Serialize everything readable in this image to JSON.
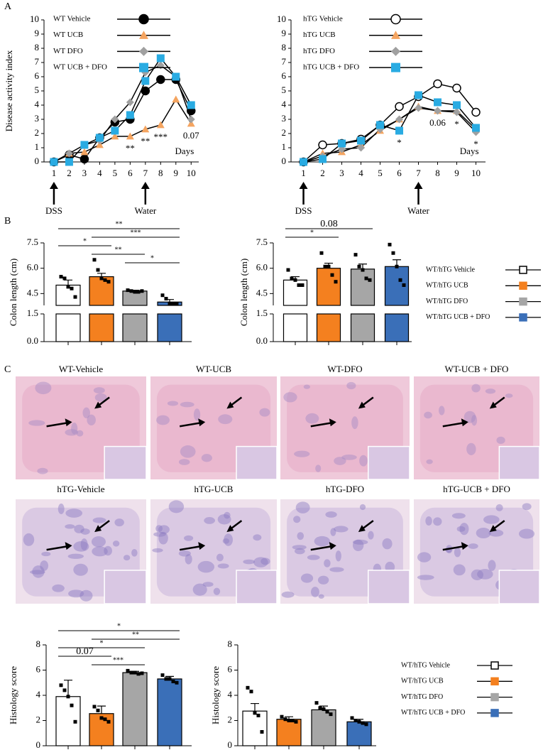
{
  "panel_labels": [
    "A",
    "B",
    "C"
  ],
  "micrographs": [
    "WT-Vehicle",
    "WT-UCB",
    "WT-DFO",
    "WT-UCB + DFO",
    "hTG-Vehicle",
    "hTG-UCB",
    "hTG-DFO",
    "hTG-UCB + DFO"
  ],
  "legend": {
    "entries": [
      "WT/hTG Vehicle",
      "WT/hTG UCB",
      "WT/hTG DFO",
      "WT/hTG UCB + DFO"
    ],
    "colors": [
      "#ffffff",
      "#f4801f",
      "#a6a6a6",
      "#3a6fb8"
    ]
  },
  "chart_data": [
    {
      "type": "line",
      "ylabel": "Disease activity index",
      "xlabel": "Days",
      "x": [
        1,
        2,
        3,
        4,
        5,
        6,
        7,
        8,
        9,
        10
      ],
      "xlim": [
        0.35,
        10.5
      ],
      "xticks": [
        1,
        2,
        3,
        4,
        5,
        6,
        7,
        8,
        9,
        10
      ],
      "ylim": [
        0,
        10
      ],
      "yticks": [
        0,
        1,
        2,
        3,
        4,
        5,
        6,
        7,
        8,
        9,
        10
      ],
      "series": [
        {
          "name": "WT Vehicle",
          "color": "#000000",
          "marker": "circle-filled",
          "values": [
            0,
            0.5,
            0.2,
            1.7,
            2.8,
            3.0,
            5.0,
            5.8,
            5.8,
            3.6
          ]
        },
        {
          "name": "WT UCB",
          "color": "#f4a460",
          "marker": "triangle",
          "values": [
            0,
            0.6,
            0.7,
            1.2,
            1.8,
            1.8,
            2.3,
            2.6,
            4.4,
            2.7
          ]
        },
        {
          "name": "WT DFO",
          "color": "#a0a0a0",
          "marker": "diamond",
          "values": [
            0,
            0.6,
            1.2,
            1.5,
            3.0,
            4.2,
            6.3,
            6.8,
            6.0,
            3.0
          ]
        },
        {
          "name": "WT UCB + DFO",
          "color": "#29abe2",
          "marker": "square",
          "values": [
            0,
            0,
            1.2,
            1.7,
            2.2,
            3.3,
            5.7,
            7.3,
            6.0,
            4.0
          ]
        }
      ],
      "annotations": [
        {
          "x": 6,
          "text": "**"
        },
        {
          "x": 7,
          "text": "**"
        },
        {
          "x": 8,
          "text": "***"
        },
        {
          "x": 10,
          "text": "0.07"
        }
      ],
      "events": [
        {
          "x": 1,
          "label": "DSS"
        },
        {
          "x": 7,
          "label": "Water"
        }
      ]
    },
    {
      "type": "line",
      "xlabel": "Days",
      "x": [
        1,
        2,
        3,
        4,
        5,
        6,
        7,
        8,
        9,
        10
      ],
      "xlim": [
        0.35,
        10.5
      ],
      "xticks": [
        1,
        2,
        3,
        4,
        5,
        6,
        7,
        8,
        9,
        10
      ],
      "ylim": [
        0,
        10
      ],
      "yticks": [
        0,
        1,
        2,
        3,
        4,
        5,
        6,
        7,
        8,
        9,
        10
      ],
      "series": [
        {
          "name": "hTG Vehicle",
          "color": "#ffffff",
          "marker": "circle-open",
          "values": [
            0,
            1.2,
            1.3,
            1.6,
            2.6,
            3.9,
            4.6,
            5.5,
            5.2,
            3.5
          ]
        },
        {
          "name": "hTG UCB",
          "color": "#f4a460",
          "marker": "triangle",
          "values": [
            0,
            0.6,
            0.7,
            1.2,
            2.2,
            3.0,
            3.9,
            3.6,
            3.6,
            2.3
          ]
        },
        {
          "name": "hTG DFO",
          "color": "#a0a0a0",
          "marker": "diamond",
          "values": [
            0,
            0.4,
            0.9,
            1.0,
            2.3,
            3.0,
            3.8,
            3.6,
            3.5,
            2.1
          ]
        },
        {
          "name": "hTG UCB + DFO",
          "color": "#29abe2",
          "marker": "square",
          "values": [
            0,
            0.2,
            1.3,
            1.5,
            2.6,
            2.2,
            4.7,
            4.2,
            4.0,
            2.4
          ]
        }
      ],
      "annotations": [
        {
          "x": 6,
          "text": "*"
        },
        {
          "x": 8,
          "text": "0.06"
        },
        {
          "x": 9,
          "text": "*"
        },
        {
          "x": 10,
          "text": "*"
        }
      ],
      "events": [
        {
          "x": 1,
          "label": "DSS"
        },
        {
          "x": 7,
          "label": "Water"
        }
      ]
    },
    {
      "type": "bar",
      "ylabel": "Colon length (cm)",
      "categories": [
        null,
        null,
        null,
        null
      ],
      "values": [
        5.0,
        5.5,
        4.65,
        4.0
      ],
      "errors": [
        0.3,
        0.2,
        0.05,
        0.15
      ],
      "points": [
        [
          5.5,
          5.4,
          4.9,
          4.8,
          4.3
        ],
        [
          6.5,
          5.9,
          5.4,
          5.3,
          5.2
        ],
        [
          4.7,
          4.65,
          4.6,
          4.6,
          4.65
        ],
        [
          4.4,
          4.2,
          3.9,
          3.9,
          3.9
        ]
      ],
      "colors": [
        "#ffffff",
        "#f4801f",
        "#a6a6a6",
        "#3a6fb8"
      ],
      "ylim": [
        3.8,
        7.5
      ],
      "yticks": [
        4.5,
        {
          "value": 6,
          "label": "6.0"
        },
        7.5
      ],
      "ylim_low": [
        0,
        1.5
      ],
      "yticks_low": [
        {
          "value": 0,
          "label": "0.0"
        },
        1.5
      ],
      "brackets": [
        {
          "from": 0,
          "to": 3,
          "text": "**"
        },
        {
          "from": 1,
          "to": 3,
          "text": "***"
        },
        {
          "from": 0,
          "to": 1,
          "text": "*"
        },
        {
          "from": 1,
          "to": 2,
          "text": "**"
        },
        {
          "from": 2,
          "to": 3,
          "text": "*"
        }
      ]
    },
    {
      "type": "bar",
      "ylabel": "Colon length (cm)",
      "categories": [
        null,
        null,
        null,
        null
      ],
      "values": [
        5.3,
        6.0,
        5.95,
        6.1
      ],
      "errors": [
        0.2,
        0.3,
        0.3,
        0.4
      ],
      "points": [
        [
          5.9,
          5.4,
          5.3,
          5.0,
          5.0
        ],
        [
          6.9,
          6.1,
          6.1,
          5.6,
          5.2
        ],
        [
          6.8,
          6.1,
          5.9,
          5.4,
          5.3
        ],
        [
          7.4,
          6.9,
          6.1,
          5.3,
          5.0
        ]
      ],
      "colors": [
        "#ffffff",
        "#f4801f",
        "#a6a6a6",
        "#3a6fb8"
      ],
      "ylim": [
        3.8,
        7.5
      ],
      "yticks": [
        4.5,
        {
          "value": 6,
          "label": "6.0"
        },
        7.5
      ],
      "ylim_low": [
        0,
        1.5
      ],
      "yticks_low": [
        {
          "value": 0,
          "label": "0.0"
        },
        1.5
      ],
      "brackets": [
        {
          "from": 0,
          "to": 2,
          "text": "0.08"
        },
        {
          "from": 0,
          "to": 1,
          "text": "*"
        }
      ]
    },
    {
      "type": "bar",
      "ylabel": "Histology score",
      "categories": [
        null,
        null,
        null,
        null
      ],
      "values": [
        3.9,
        2.55,
        5.8,
        5.3
      ],
      "errors": [
        1.3,
        0.6,
        0.1,
        0.2
      ],
      "points": [
        [
          4.8,
          4.4,
          3.9,
          3.2,
          1.9
        ],
        [
          3.1,
          2.8,
          2.2,
          2.1,
          1.9
        ],
        [
          5.95,
          5.8,
          5.8,
          5.7,
          5.75
        ],
        [
          5.6,
          5.3,
          5.3,
          5.1,
          5.0
        ]
      ],
      "colors": [
        "#ffffff",
        "#f4801f",
        "#a6a6a6",
        "#3a6fb8"
      ],
      "ylim": [
        0,
        8
      ],
      "yticks": [
        0,
        2,
        4,
        6,
        8
      ],
      "brackets": [
        {
          "from": 0,
          "to": 3,
          "text": "*"
        },
        {
          "from": 1,
          "to": 3,
          "text": "**"
        },
        {
          "from": 0,
          "to": 2,
          "text": "*"
        },
        {
          "from": 0,
          "to": 1,
          "text": "0.07"
        },
        {
          "from": 1,
          "to": 2,
          "text": "***"
        }
      ]
    },
    {
      "type": "bar",
      "ylabel": "Histology score",
      "categories": [
        null,
        null,
        null,
        null
      ],
      "values": [
        2.75,
        2.1,
        2.85,
        1.9
      ],
      "errors": [
        0.6,
        0.2,
        0.3,
        0.2
      ],
      "points": [
        [
          4.6,
          4.3,
          2.6,
          2.4,
          1.1
        ],
        [
          2.3,
          2.1,
          2.0,
          2.0,
          1.9
        ],
        [
          3.4,
          3.0,
          2.9,
          2.7,
          2.5
        ],
        [
          2.2,
          2.0,
          1.9,
          1.8,
          1.7
        ]
      ],
      "colors": [
        "#ffffff",
        "#f4801f",
        "#a6a6a6",
        "#3a6fb8"
      ],
      "ylim": [
        0,
        8
      ],
      "yticks": [
        0,
        2,
        4,
        6,
        8
      ],
      "brackets": []
    }
  ]
}
